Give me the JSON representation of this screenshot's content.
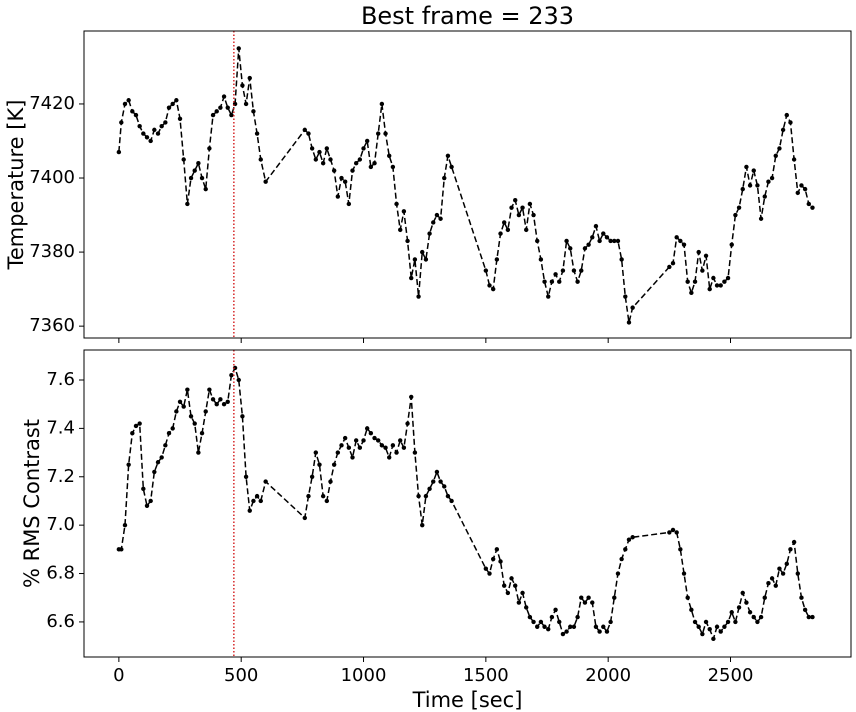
{
  "chart_data": [
    {
      "type": "line",
      "title": "Best frame = 233",
      "ylabel": "Temperature [K]",
      "color": "#000000",
      "vline_color": "#d62728",
      "vline_x": 470,
      "show_xticklabels": false,
      "x": [
        0,
        10,
        25,
        40,
        55,
        70,
        85,
        100,
        115,
        130,
        145,
        160,
        175,
        190,
        205,
        220,
        235,
        250,
        265,
        280,
        295,
        310,
        325,
        340,
        355,
        370,
        385,
        400,
        415,
        430,
        445,
        460,
        475,
        490,
        505,
        520,
        535,
        550,
        565,
        580,
        600,
        760,
        775,
        790,
        805,
        820,
        835,
        850,
        865,
        880,
        895,
        910,
        925,
        940,
        955,
        970,
        985,
        1000,
        1015,
        1030,
        1045,
        1060,
        1075,
        1090,
        1105,
        1120,
        1135,
        1150,
        1165,
        1180,
        1195,
        1210,
        1225,
        1240,
        1255,
        1270,
        1285,
        1300,
        1315,
        1330,
        1345,
        1360,
        1500,
        1515,
        1530,
        1545,
        1560,
        1575,
        1590,
        1605,
        1620,
        1635,
        1650,
        1665,
        1680,
        1695,
        1710,
        1725,
        1740,
        1755,
        1770,
        1785,
        1800,
        1815,
        1830,
        1845,
        1860,
        1875,
        1890,
        1905,
        1920,
        1935,
        1950,
        1965,
        1980,
        1995,
        2010,
        2025,
        2040,
        2055,
        2070,
        2085,
        2100,
        2250,
        2265,
        2280,
        2295,
        2310,
        2325,
        2340,
        2355,
        2370,
        2385,
        2400,
        2415,
        2430,
        2445,
        2460,
        2475,
        2490,
        2505,
        2520,
        2535,
        2550,
        2565,
        2580,
        2595,
        2610,
        2625,
        2640,
        2655,
        2670,
        2685,
        2700,
        2715,
        2730,
        2745,
        2760,
        2775,
        2790,
        2805,
        2820,
        2835
      ],
      "values": [
        7407,
        7415,
        7420,
        7421,
        7418,
        7417,
        7414,
        7412,
        7411,
        7410,
        7413,
        7412,
        7414,
        7415,
        7419,
        7420,
        7421,
        7416,
        7405,
        7393,
        7400,
        7402,
        7404,
        7400,
        7397,
        7408,
        7417,
        7418,
        7419,
        7422,
        7419,
        7417,
        7420,
        7435,
        7425,
        7420,
        7427,
        7418,
        7412,
        7405,
        7399,
        7413,
        7412,
        7408,
        7405,
        7407,
        7404,
        7408,
        7405,
        7402,
        7395,
        7400,
        7399,
        7393,
        7402,
        7404,
        7405,
        7408,
        7410,
        7403,
        7404,
        7412,
        7420,
        7412,
        7406,
        7403,
        7393,
        7386,
        7391,
        7383,
        7373,
        7378,
        7368,
        7380,
        7378,
        7385,
        7388,
        7390,
        7389,
        7400,
        7406,
        7403,
        7375,
        7371,
        7370,
        7378,
        7385,
        7388,
        7386,
        7392,
        7394,
        7390,
        7392,
        7386,
        7393,
        7390,
        7383,
        7378,
        7372,
        7368,
        7372,
        7374,
        7372,
        7375,
        7383,
        7381,
        7375,
        7372,
        7375,
        7381,
        7382,
        7384,
        7387,
        7383,
        7385,
        7384,
        7383,
        7383,
        7383,
        7378,
        7368,
        7361,
        7365,
        7376,
        7377,
        7384,
        7383,
        7382,
        7372,
        7369,
        7372,
        7380,
        7375,
        7379,
        7370,
        7373,
        7371,
        7371,
        7372,
        7373,
        7382,
        7390,
        7392,
        7397,
        7403,
        7398,
        7402,
        7398,
        7389,
        7395,
        7399,
        7400,
        7406,
        7408,
        7413,
        7417,
        7415,
        7405,
        7396,
        7398,
        7397,
        7393,
        7392
      ],
      "xlim": [
        -142.5,
        2992.5
      ],
      "xticks": [
        0,
        500,
        1000,
        1500,
        2000,
        2500
      ],
      "ylim": [
        7356.8,
        7439.7
      ],
      "yticks": [
        7360,
        7380,
        7400,
        7420
      ]
    },
    {
      "type": "line",
      "xlabel": "Time [sec]",
      "ylabel": "% RMS Contrast",
      "color": "#000000",
      "vline_color": "#d62728",
      "vline_x": 470,
      "show_xticklabels": true,
      "x": [
        0,
        10,
        25,
        40,
        55,
        70,
        85,
        100,
        115,
        130,
        145,
        160,
        175,
        190,
        205,
        220,
        235,
        250,
        265,
        280,
        295,
        310,
        325,
        340,
        355,
        370,
        385,
        400,
        415,
        430,
        445,
        460,
        475,
        490,
        505,
        520,
        535,
        550,
        565,
        580,
        600,
        760,
        775,
        790,
        805,
        820,
        835,
        850,
        865,
        880,
        895,
        910,
        925,
        940,
        955,
        970,
        985,
        1000,
        1015,
        1030,
        1045,
        1060,
        1075,
        1090,
        1105,
        1120,
        1135,
        1150,
        1165,
        1180,
        1195,
        1210,
        1225,
        1240,
        1255,
        1270,
        1285,
        1300,
        1315,
        1330,
        1345,
        1360,
        1500,
        1515,
        1530,
        1545,
        1560,
        1575,
        1590,
        1605,
        1620,
        1635,
        1650,
        1665,
        1680,
        1695,
        1710,
        1725,
        1740,
        1755,
        1770,
        1785,
        1800,
        1815,
        1830,
        1845,
        1860,
        1875,
        1890,
        1905,
        1920,
        1935,
        1950,
        1965,
        1980,
        1995,
        2010,
        2025,
        2040,
        2055,
        2070,
        2085,
        2100,
        2250,
        2265,
        2280,
        2295,
        2310,
        2325,
        2340,
        2355,
        2370,
        2385,
        2400,
        2415,
        2430,
        2445,
        2460,
        2475,
        2490,
        2505,
        2520,
        2535,
        2550,
        2565,
        2580,
        2595,
        2610,
        2625,
        2640,
        2655,
        2670,
        2685,
        2700,
        2715,
        2730,
        2745,
        2760,
        2775,
        2790,
        2805,
        2820,
        2835
      ],
      "values": [
        6.9,
        6.9,
        7.0,
        7.25,
        7.38,
        7.41,
        7.42,
        7.15,
        7.08,
        7.1,
        7.22,
        7.26,
        7.28,
        7.33,
        7.38,
        7.4,
        7.47,
        7.51,
        7.49,
        7.56,
        7.45,
        7.42,
        7.3,
        7.38,
        7.47,
        7.56,
        7.52,
        7.5,
        7.52,
        7.5,
        7.51,
        7.62,
        7.65,
        7.6,
        7.45,
        7.2,
        7.06,
        7.1,
        7.12,
        7.1,
        7.18,
        7.03,
        7.12,
        7.2,
        7.3,
        7.25,
        7.12,
        7.1,
        7.18,
        7.25,
        7.3,
        7.33,
        7.36,
        7.32,
        7.28,
        7.35,
        7.32,
        7.35,
        7.4,
        7.38,
        7.36,
        7.35,
        7.33,
        7.32,
        7.28,
        7.33,
        7.3,
        7.35,
        7.32,
        7.42,
        7.53,
        7.3,
        7.12,
        7.0,
        7.12,
        7.15,
        7.18,
        7.22,
        7.18,
        7.16,
        7.12,
        7.1,
        6.82,
        6.8,
        6.86,
        6.9,
        6.85,
        6.75,
        6.72,
        6.78,
        6.75,
        6.68,
        6.72,
        6.66,
        6.62,
        6.6,
        6.58,
        6.6,
        6.58,
        6.57,
        6.62,
        6.65,
        6.6,
        6.55,
        6.56,
        6.58,
        6.58,
        6.62,
        6.7,
        6.68,
        6.7,
        6.68,
        6.58,
        6.56,
        6.58,
        6.56,
        6.6,
        6.7,
        6.8,
        6.86,
        6.9,
        6.94,
        6.95,
        6.97,
        6.98,
        6.97,
        6.9,
        6.8,
        6.7,
        6.65,
        6.6,
        6.58,
        6.55,
        6.6,
        6.57,
        6.53,
        6.58,
        6.56,
        6.58,
        6.6,
        6.64,
        6.6,
        6.66,
        6.72,
        6.68,
        6.64,
        6.62,
        6.6,
        6.62,
        6.7,
        6.76,
        6.78,
        6.75,
        6.82,
        6.8,
        6.84,
        6.9,
        6.93,
        6.8,
        6.7,
        6.65,
        6.62,
        6.62
      ],
      "xlim": [
        -142.5,
        2992.5
      ],
      "xticks": [
        0,
        500,
        1000,
        1500,
        2000,
        2500
      ],
      "ylim": [
        6.455,
        7.724
      ],
      "yticks": [
        6.6,
        6.8,
        {
          "value": 7,
          "label": "7.0"
        },
        7.2,
        7.4,
        7.6
      ]
    }
  ]
}
